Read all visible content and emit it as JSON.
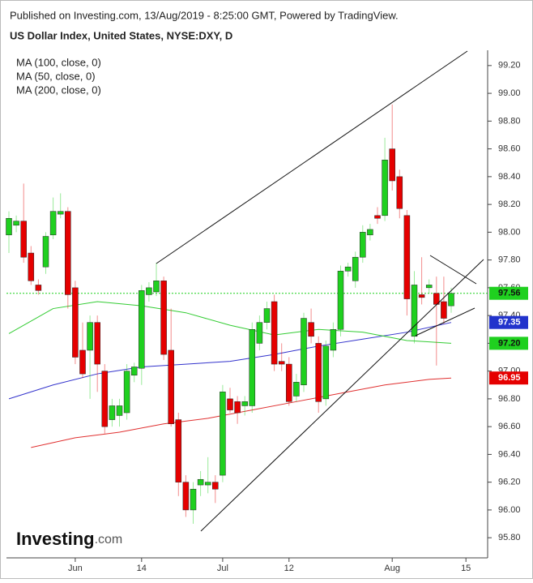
{
  "header": {
    "published": "Published on Investing.com, 13/Aug/2019 - 8:25:00 GMT, Powered by TradingView.",
    "logo_name": "Investing",
    "logo_suffix": ".com"
  },
  "chart_data": {
    "type": "candlestick",
    "title": "US Dollar Index, United States, NYSE:DXY, D",
    "up_color": "#1fd01f",
    "down_color": "#e50000",
    "categories": [
      null,
      null,
      null,
      null,
      null,
      null,
      null,
      null,
      null,
      "Jun",
      null,
      null,
      null,
      null,
      null,
      null,
      null,
      null,
      "14",
      null,
      null,
      null,
      null,
      null,
      null,
      null,
      null,
      null,
      null,
      "Jul",
      null,
      null,
      null,
      null,
      null,
      null,
      null,
      null,
      "12",
      null,
      null,
      null,
      null,
      null,
      null,
      null,
      null,
      null,
      null,
      null,
      null,
      null,
      "Aug",
      null,
      null,
      null,
      null,
      null,
      null,
      null,
      null,
      null,
      "15"
    ],
    "candles": {
      "open": [
        97.98,
        98.05,
        98.08,
        97.85,
        97.62,
        97.75,
        97.98,
        98.13,
        98.15,
        97.6,
        97.15,
        97.15,
        97.35,
        97.0,
        96.65,
        96.68,
        96.7,
        96.97,
        97.02,
        97.55,
        97.57,
        97.65,
        97.15,
        96.65,
        96.2,
        96.0,
        96.18,
        96.18,
        96.2,
        96.25,
        96.8,
        96.78,
        96.75,
        96.75,
        97.2,
        97.35,
        97.5,
        97.07,
        97.05,
        96.82,
        96.9,
        97.35,
        97.2,
        96.8,
        97.15,
        97.3,
        97.72,
        97.65,
        97.82,
        97.98,
        98.12,
        98.12,
        98.6,
        98.4,
        98.12,
        97.25,
        97.55,
        97.6,
        97.56,
        97.5,
        97.47
      ],
      "high": [
        98.15,
        98.12,
        98.35,
        97.9,
        97.66,
        98.0,
        98.25,
        98.28,
        98.18,
        97.65,
        97.35,
        97.4,
        97.4,
        97.05,
        96.8,
        96.8,
        97.05,
        97.06,
        97.62,
        97.64,
        97.78,
        97.68,
        97.45,
        96.7,
        96.25,
        96.2,
        96.28,
        96.38,
        96.25,
        96.9,
        96.88,
        96.82,
        96.82,
        97.35,
        97.4,
        97.5,
        97.55,
        97.2,
        97.1,
        96.98,
        97.42,
        97.45,
        97.25,
        97.22,
        97.35,
        97.76,
        97.78,
        97.86,
        98.05,
        98.06,
        98.18,
        98.68,
        98.92,
        98.45,
        98.16,
        97.72,
        97.82,
        97.66,
        97.68,
        97.68,
        97.6
      ],
      "low": [
        97.85,
        98.0,
        97.78,
        97.62,
        97.55,
        97.7,
        97.95,
        98.1,
        97.45,
        97.05,
        96.95,
        96.8,
        96.85,
        96.55,
        96.6,
        96.6,
        96.65,
        96.92,
        96.9,
        97.5,
        97.54,
        97.08,
        96.6,
        96.1,
        95.95,
        95.9,
        96.1,
        96.12,
        96.05,
        96.2,
        96.7,
        96.62,
        96.68,
        96.7,
        97.15,
        97.3,
        97.0,
        97.0,
        96.75,
        96.78,
        96.85,
        97.2,
        96.7,
        96.75,
        97.1,
        97.25,
        97.68,
        97.6,
        97.78,
        97.94,
        98.06,
        98.08,
        98.3,
        98.1,
        97.4,
        97.2,
        97.48,
        97.56,
        97.04,
        97.34,
        97.42
      ],
      "close": [
        98.1,
        98.08,
        97.82,
        97.65,
        97.58,
        97.97,
        98.15,
        98.15,
        97.55,
        97.1,
        96.98,
        97.35,
        97.05,
        96.6,
        96.75,
        96.75,
        97.0,
        97.03,
        97.58,
        97.6,
        97.65,
        97.12,
        96.62,
        96.2,
        96.0,
        96.15,
        96.22,
        96.2,
        96.15,
        96.85,
        96.72,
        96.7,
        96.78,
        97.3,
        97.35,
        97.45,
        97.05,
        97.05,
        96.78,
        96.92,
        97.38,
        97.25,
        96.78,
        97.18,
        97.3,
        97.72,
        97.75,
        97.82,
        98.0,
        98.02,
        98.1,
        98.52,
        98.37,
        98.17,
        97.52,
        97.62,
        97.53,
        97.62,
        97.48,
        97.38,
        97.56
      ]
    },
    "series": [
      {
        "name": "MA (100, close, 0)",
        "color": "#3333cc",
        "x": [
          0,
          6,
          12,
          18,
          24,
          30,
          36,
          42,
          48,
          54,
          60
        ],
        "values": [
          96.8,
          96.9,
          96.98,
          97.03,
          97.05,
          97.07,
          97.12,
          97.18,
          97.23,
          97.28,
          97.35
        ]
      },
      {
        "name": "MA (50, close, 0)",
        "color": "#33cc33",
        "x": [
          0,
          6,
          12,
          18,
          24,
          30,
          36,
          42,
          48,
          54,
          60
        ],
        "values": [
          97.27,
          97.45,
          97.5,
          97.47,
          97.42,
          97.33,
          97.26,
          97.3,
          97.28,
          97.22,
          97.2
        ]
      },
      {
        "name": "MA (200, close, 0)",
        "color": "#e03030",
        "x": [
          3,
          9,
          15,
          21,
          27,
          33,
          39,
          45,
          51,
          57,
          60
        ],
        "values": [
          96.45,
          96.52,
          96.56,
          96.62,
          96.66,
          96.72,
          96.78,
          96.84,
          96.9,
          96.94,
          96.95
        ]
      }
    ],
    "price_labels": [
      97.56,
      97.35,
      {
        "value": 97.2,
        "label": "97.20"
      },
      96.95
    ],
    "price_label_colors": [
      "#1fd01f",
      "#2233cc",
      "#1fd01f",
      "#e50000"
    ],
    "ylim": [
      95.655,
      99.31
    ],
    "yticks": [
      {
        "value": 95.8,
        "label": "95.80"
      },
      {
        "value": 96,
        "label": "96.00"
      },
      {
        "value": 96.2,
        "label": "96.20"
      },
      {
        "value": 96.4,
        "label": "96.40"
      },
      {
        "value": 96.6,
        "label": "96.60"
      },
      {
        "value": 96.8,
        "label": "96.80"
      },
      {
        "value": 97,
        "label": "97.00"
      },
      {
        "value": 97.2,
        "label": "97.20"
      },
      {
        "value": 97.4,
        "label": "97.40"
      },
      {
        "value": 97.6,
        "label": "97.60"
      },
      {
        "value": 97.8,
        "label": "97.80"
      },
      {
        "value": 98,
        "label": "98.00"
      },
      {
        "value": 98.2,
        "label": "98.20"
      },
      {
        "value": 98.4,
        "label": "98.40"
      },
      {
        "value": 98.6,
        "label": "98.60"
      },
      {
        "value": 98.8,
        "label": "98.80"
      },
      {
        "value": 99,
        "label": "99.00"
      },
      {
        "value": 99.2,
        "label": "99.20"
      }
    ],
    "grid": false
  }
}
